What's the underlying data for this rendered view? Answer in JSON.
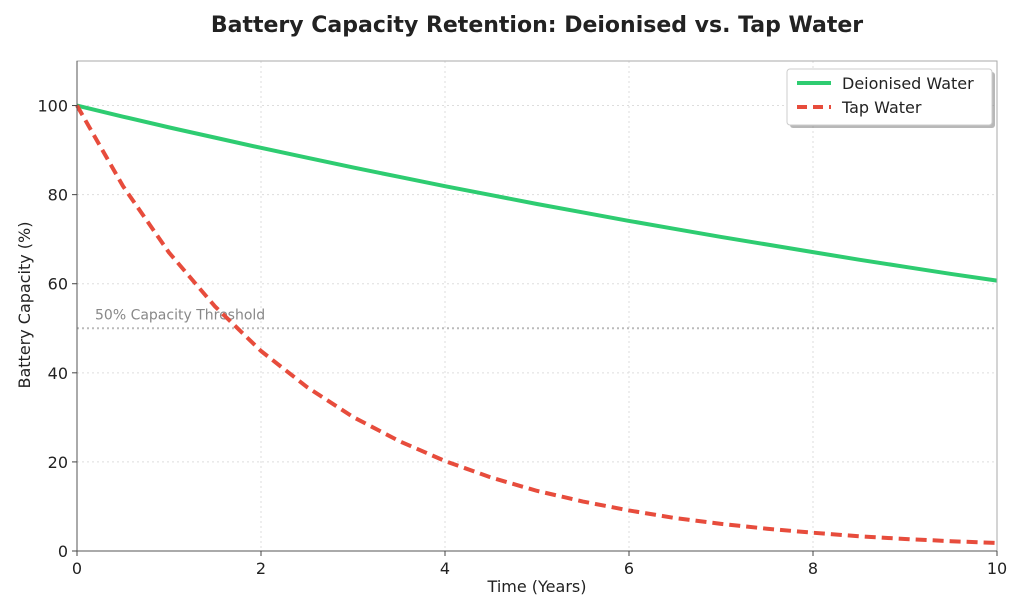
{
  "chart_data": {
    "type": "line",
    "title": "Battery Capacity Retention: Deionised vs. Tap Water",
    "xlabel": "Time (Years)",
    "ylabel": "Battery Capacity (%)",
    "xlim": [
      0,
      10
    ],
    "ylim": [
      0,
      110
    ],
    "xticks": [
      0,
      2,
      4,
      6,
      8,
      10
    ],
    "yticks": [
      0,
      20,
      40,
      60,
      80,
      100
    ],
    "grid": true,
    "legend_position": "top-right",
    "series": [
      {
        "name": "Deionised Water",
        "color": "#2ecc71",
        "style": "solid",
        "x": [
          0,
          0.5,
          1,
          1.5,
          2,
          2.5,
          3,
          3.5,
          4,
          4.5,
          5,
          5.5,
          6,
          6.5,
          7,
          7.5,
          8,
          8.5,
          9,
          9.5,
          10
        ],
        "y": [
          100,
          97.5,
          95.1,
          92.8,
          90.5,
          88.3,
          86.1,
          84.0,
          81.9,
          79.9,
          77.9,
          76.0,
          74.1,
          72.3,
          70.5,
          68.8,
          67.1,
          65.4,
          63.8,
          62.2,
          60.7
        ]
      },
      {
        "name": "Tap Water",
        "color": "#e74c3c",
        "style": "dashed",
        "x": [
          0,
          0.5,
          1,
          1.5,
          2,
          2.5,
          3,
          3.5,
          4,
          4.5,
          5,
          5.5,
          6,
          6.5,
          7,
          7.5,
          8,
          8.5,
          9,
          9.5,
          10
        ],
        "y": [
          100,
          81.9,
          67.0,
          54.9,
          44.9,
          36.8,
          30.1,
          24.7,
          20.2,
          16.5,
          13.5,
          11.1,
          9.1,
          7.4,
          6.1,
          5.0,
          4.1,
          3.3,
          2.7,
          2.2,
          1.8
        ]
      }
    ],
    "reference_lines": [
      {
        "y": 50,
        "label": "50% Capacity Threshold",
        "color": "#bbbbbb",
        "style": "dotted"
      }
    ]
  }
}
